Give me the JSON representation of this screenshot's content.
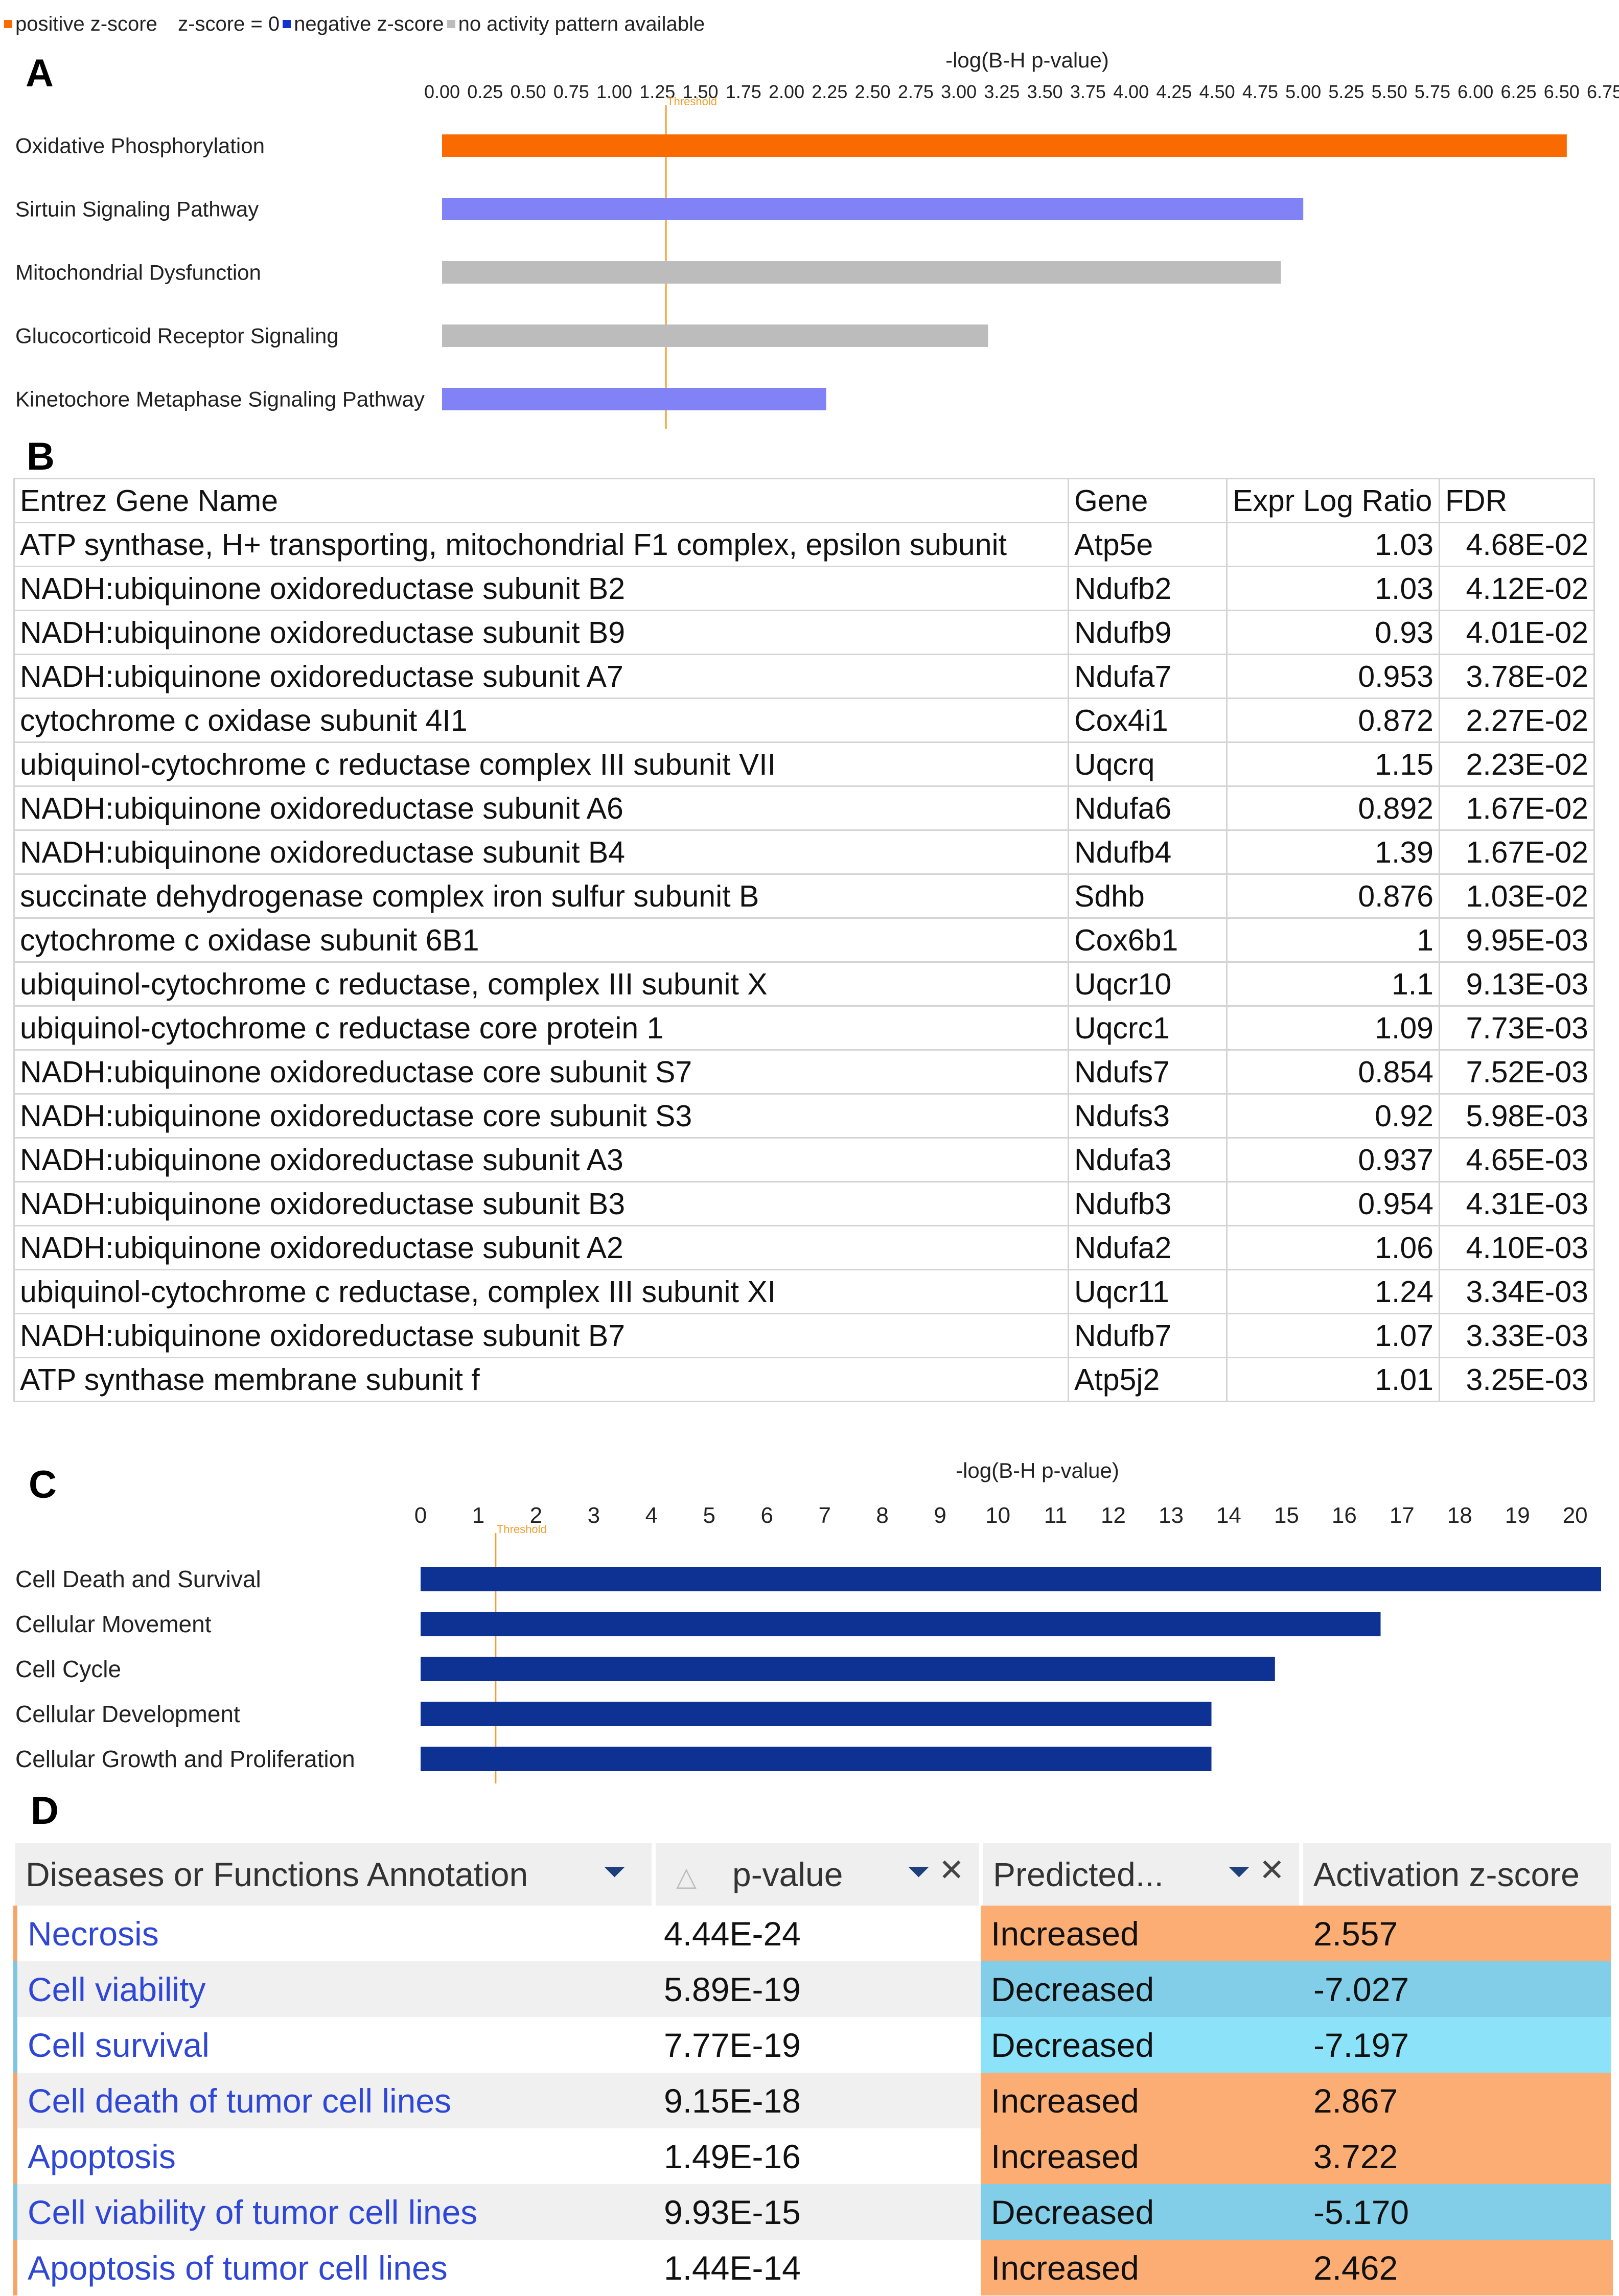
{
  "legend": {
    "items": [
      {
        "label": "positive z-score",
        "color": "#f96b00"
      },
      {
        "label": "z-score = 0",
        "color": "#ffffff"
      },
      {
        "label": "negative z-score",
        "color": "#1133cc"
      },
      {
        "label": "no activity pattern available",
        "color": "#bcbcbc"
      }
    ]
  },
  "panels": {
    "a": "A",
    "b": "B",
    "c": "C",
    "d": "D"
  },
  "chart_data": [
    {
      "type": "bar",
      "orientation": "horizontal",
      "title": "-log(B-H p-value)",
      "threshold": 1.3,
      "threshold_label": "Threshold",
      "xlim": [
        0,
        6.75
      ],
      "ticks": [
        "0.00",
        "0.25",
        "0.50",
        "0.75",
        "1.00",
        "1.25",
        "1.50",
        "1.75",
        "2.00",
        "2.25",
        "2.50",
        "2.75",
        "3.00",
        "3.25",
        "3.50",
        "3.75",
        "4.00",
        "4.25",
        "4.50",
        "4.75",
        "5.00",
        "5.25",
        "5.50",
        "5.75",
        "6.00",
        "6.25",
        "6.50",
        "6.75"
      ],
      "categories": [
        "Oxidative Phosphorylation",
        "Sirtuin Signaling Pathway",
        "Mitochondrial Dysfunction",
        "Glucocorticoid Receptor Signaling",
        "Kinetochore Metaphase Signaling Pathway"
      ],
      "values": [
        6.53,
        5.0,
        4.87,
        3.17,
        2.23
      ],
      "colors": [
        "#f96b00",
        "#8282f7",
        "#bcbcbc",
        "#bcbcbc",
        "#8282f7"
      ]
    },
    {
      "type": "bar",
      "orientation": "horizontal",
      "title": "-log(B-H p-value)",
      "threshold": 1.3,
      "threshold_label": "Threshold",
      "xlim": [
        0,
        20.45
      ],
      "ticks": [
        "0",
        "1",
        "2",
        "3",
        "4",
        "5",
        "6",
        "7",
        "8",
        "9",
        "10",
        "11",
        "12",
        "13",
        "14",
        "15",
        "16",
        "17",
        "18",
        "19",
        "20"
      ],
      "categories": [
        "Cell Death and Survival",
        "Cellular Movement",
        "Cell Cycle",
        "Cellular Development",
        "Cellular Growth and Proliferation"
      ],
      "values": [
        20.45,
        16.63,
        14.8,
        13.7,
        13.7
      ],
      "colors": [
        "#0d3293",
        "#0d3293",
        "#0d3293",
        "#0d3293",
        "#0d3293"
      ]
    }
  ],
  "gene_table": {
    "headers": [
      "Entrez Gene Name",
      "Gene",
      "Expr Log Ratio",
      "FDR"
    ],
    "rows": [
      [
        "ATP synthase, H+ transporting, mitochondrial F1 complex, epsilon subunit",
        "Atp5e",
        "1.03",
        "4.68E-02"
      ],
      [
        "NADH:ubiquinone oxidoreductase subunit B2",
        "Ndufb2",
        "1.03",
        "4.12E-02"
      ],
      [
        "NADH:ubiquinone oxidoreductase subunit B9",
        "Ndufb9",
        "0.93",
        "4.01E-02"
      ],
      [
        "NADH:ubiquinone oxidoreductase subunit A7",
        "Ndufa7",
        "0.953",
        "3.78E-02"
      ],
      [
        "cytochrome c oxidase subunit 4I1",
        "Cox4i1",
        "0.872",
        "2.27E-02"
      ],
      [
        "ubiquinol-cytochrome c reductase complex III subunit VII",
        "Uqcrq",
        "1.15",
        "2.23E-02"
      ],
      [
        "NADH:ubiquinone oxidoreductase subunit A6",
        "Ndufa6",
        "0.892",
        "1.67E-02"
      ],
      [
        "NADH:ubiquinone oxidoreductase subunit B4",
        "Ndufb4",
        "1.39",
        "1.67E-02"
      ],
      [
        "succinate dehydrogenase complex iron sulfur subunit B",
        "Sdhb",
        "0.876",
        "1.03E-02"
      ],
      [
        "cytochrome c oxidase subunit 6B1",
        "Cox6b1",
        "1",
        "9.95E-03"
      ],
      [
        "ubiquinol-cytochrome c reductase, complex III subunit X",
        "Uqcr10",
        "1.1",
        "9.13E-03"
      ],
      [
        "ubiquinol-cytochrome c reductase core protein 1",
        "Uqcrc1",
        "1.09",
        "7.73E-03"
      ],
      [
        "NADH:ubiquinone oxidoreductase core subunit S7",
        "Ndufs7",
        "0.854",
        "7.52E-03"
      ],
      [
        "NADH:ubiquinone oxidoreductase core subunit S3",
        "Ndufs3",
        "0.92",
        "5.98E-03"
      ],
      [
        "NADH:ubiquinone oxidoreductase subunit A3",
        "Ndufa3",
        "0.937",
        "4.65E-03"
      ],
      [
        "NADH:ubiquinone oxidoreductase subunit B3",
        "Ndufb3",
        "0.954",
        "4.31E-03"
      ],
      [
        "NADH:ubiquinone oxidoreductase subunit A2",
        "Ndufa2",
        "1.06",
        "4.10E-03"
      ],
      [
        "ubiquinol-cytochrome c reductase, complex III subunit XI",
        "Uqcr11",
        "1.24",
        "3.34E-03"
      ],
      [
        "NADH:ubiquinone oxidoreductase subunit B7",
        "Ndufb7",
        "1.07",
        "3.33E-03"
      ],
      [
        "ATP synthase membrane subunit f",
        "Atp5j2",
        "1.01",
        "3.25E-03"
      ]
    ]
  },
  "disease_table": {
    "headers": {
      "annotation": "Diseases or Functions Annotation",
      "pvalue": "p-value",
      "predicted": "Predicted...",
      "zscore": "Activation z-score"
    },
    "icons": {
      "filter": "filter-icon",
      "close": "close-icon",
      "sort": "sort-asc-icon"
    },
    "row_colors": {
      "Increased": "#fbad74",
      "Decreased_dark": "#82cde8",
      "Decreased_light": "#8ce2f9",
      "stripe_light": "#ffffff",
      "stripe_dark": "#f0f0f0",
      "accent_increased": "#f5a46a",
      "accent_decreased": "#7fc4e0"
    },
    "rows": [
      {
        "annotation": "Necrosis",
        "pvalue": "4.44E-24",
        "predicted": "Increased",
        "zscore": "2.557",
        "shade": "Increased"
      },
      {
        "annotation": "Cell viability",
        "pvalue": "5.89E-19",
        "predicted": "Decreased",
        "zscore": "-7.027",
        "shade": "Decreased_dark"
      },
      {
        "annotation": "Cell survival",
        "pvalue": "7.77E-19",
        "predicted": "Decreased",
        "zscore": "-7.197",
        "shade": "Decreased_light"
      },
      {
        "annotation": "Cell death of tumor cell lines",
        "pvalue": "9.15E-18",
        "predicted": "Increased",
        "zscore": "2.867",
        "shade": "Increased"
      },
      {
        "annotation": "Apoptosis",
        "pvalue": "1.49E-16",
        "predicted": "Increased",
        "zscore": "3.722",
        "shade": "Increased"
      },
      {
        "annotation": "Cell viability of tumor cell lines",
        "pvalue": "9.93E-15",
        "predicted": "Decreased",
        "zscore": "-5.170",
        "shade": "Decreased_dark"
      },
      {
        "annotation": "Apoptosis of tumor cell lines",
        "pvalue": "1.44E-14",
        "predicted": "Increased",
        "zscore": "2.462",
        "shade": "Increased"
      }
    ]
  }
}
